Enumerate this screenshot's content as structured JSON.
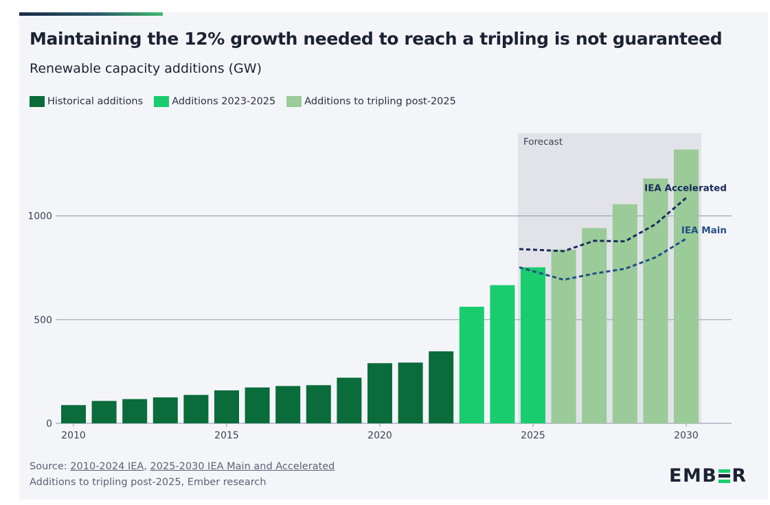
{
  "title": "Maintaining the 12% growth needed to reach a tripling is not guaranteed",
  "subtitle": "Renewable capacity additions (GW)",
  "legend": [
    {
      "label": "Historical additions",
      "color": "#0a6b3b"
    },
    {
      "label": "Additions 2023-2025",
      "color": "#19cc6e"
    },
    {
      "label": "Additions to tripling post-2025",
      "color": "#9acb99"
    }
  ],
  "forecast_label": "Forecast",
  "source": {
    "prefix": "Source: ",
    "link1": "2010-2024 IEA",
    "sep": ", ",
    "link2": "2025-2030 IEA Main and Accelerated",
    "line2": "Additions to tripling post-2025, Ember research"
  },
  "logo": {
    "left": "EMB",
    "right": "R",
    "mark_colors": [
      "#19cc6e",
      "#1b2333",
      "#19cc6e"
    ]
  },
  "colors": {
    "grid": "#9fa4b6",
    "forecast_shade": "#e2e3e8",
    "iea_accelerated": "#1b2a5a",
    "iea_main": "#244f86",
    "axis_text": "#3b4252"
  },
  "chart_data": {
    "type": "bar",
    "title": "Maintaining the 12% growth needed to reach a tripling is not guaranteed",
    "ylabel": "Renewable capacity additions (GW)",
    "xlabel": "",
    "x": [
      2010,
      2011,
      2012,
      2013,
      2014,
      2015,
      2016,
      2017,
      2018,
      2019,
      2020,
      2021,
      2022,
      2023,
      2024,
      2025,
      2026,
      2027,
      2028,
      2029,
      2030
    ],
    "series": [
      {
        "name": "Historical additions",
        "x": [
          2010,
          2011,
          2012,
          2013,
          2014,
          2015,
          2016,
          2017,
          2018,
          2019,
          2020,
          2021,
          2022
        ],
        "values": [
          88,
          108,
          117,
          125,
          137,
          159,
          173,
          180,
          184,
          220,
          290,
          293,
          347
        ],
        "color": "#0a6b3b"
      },
      {
        "name": "Additions 2023-2025",
        "x": [
          2023,
          2024,
          2025
        ],
        "values": [
          562,
          666,
          752
        ],
        "color": "#19cc6e"
      },
      {
        "name": "Additions to tripling post-2025",
        "x": [
          2026,
          2027,
          2028,
          2029,
          2030
        ],
        "values": [
          837,
          941,
          1056,
          1180,
          1320
        ],
        "color": "#9acb99"
      }
    ],
    "lines": [
      {
        "name": "IEA Accelerated",
        "x": [
          2025,
          2026,
          2027,
          2028,
          2029,
          2030
        ],
        "values": [
          840,
          830,
          880,
          877,
          960,
          1087
        ],
        "style": "dashed"
      },
      {
        "name": "IEA Main",
        "x": [
          2025,
          2026,
          2027,
          2028,
          2029,
          2030
        ],
        "values": [
          752,
          692,
          722,
          745,
          800,
          890
        ],
        "style": "dashed"
      }
    ],
    "forecast_range": [
      2025,
      2030
    ],
    "yticks": [
      0,
      500,
      1000
    ],
    "xticks": [
      2010,
      2015,
      2020,
      2025,
      2030
    ],
    "ylim": [
      0,
      1400
    ],
    "grid": true,
    "legend_position": "top-left"
  }
}
